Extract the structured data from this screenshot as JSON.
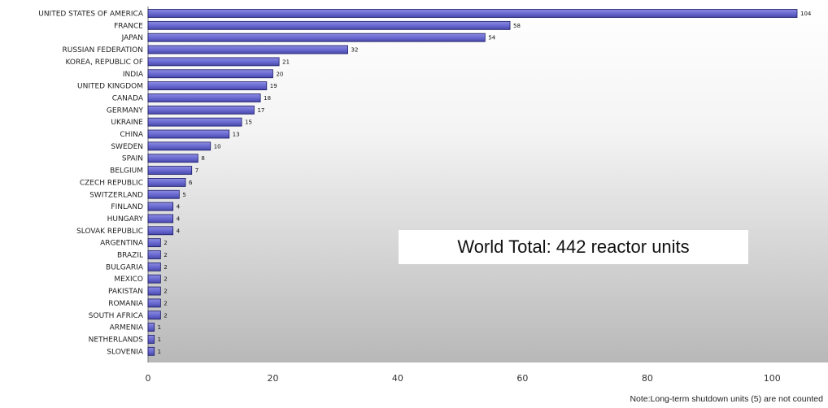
{
  "chart_data": {
    "type": "bar",
    "orientation": "horizontal",
    "categories": [
      "UNITED STATES OF AMERICA",
      "FRANCE",
      "JAPAN",
      "RUSSIAN FEDERATION",
      "KOREA, REPUBLIC OF",
      "INDIA",
      "UNITED KINGDOM",
      "CANADA",
      "GERMANY",
      "UKRAINE",
      "CHINA",
      "SWEDEN",
      "SPAIN",
      "BELGIUM",
      "CZECH REPUBLIC",
      "SWITZERLAND",
      "FINLAND",
      "HUNGARY",
      "SLOVAK REPUBLIC",
      "ARGENTINA",
      "BRAZIL",
      "BULGARIA",
      "MEXICO",
      "PAKISTAN",
      "ROMANIA",
      "SOUTH AFRICA",
      "ARMENIA",
      "NETHERLANDS",
      "SLOVENIA"
    ],
    "values": [
      104,
      58,
      54,
      32,
      21,
      20,
      19,
      18,
      17,
      15,
      13,
      10,
      8,
      7,
      6,
      5,
      4,
      4,
      4,
      2,
      2,
      2,
      2,
      2,
      2,
      2,
      1,
      1,
      1
    ],
    "xlim": [
      0,
      110
    ],
    "xticks": [
      0,
      20,
      40,
      60,
      80,
      100
    ],
    "grid": false,
    "bar_color": "#6666cc",
    "bar_border": "#1a1a66",
    "background": "gradient white to gray"
  },
  "annotation": "World Total:  442 reactor units",
  "note": "Note:Long-term shutdown units (5) are not counted"
}
